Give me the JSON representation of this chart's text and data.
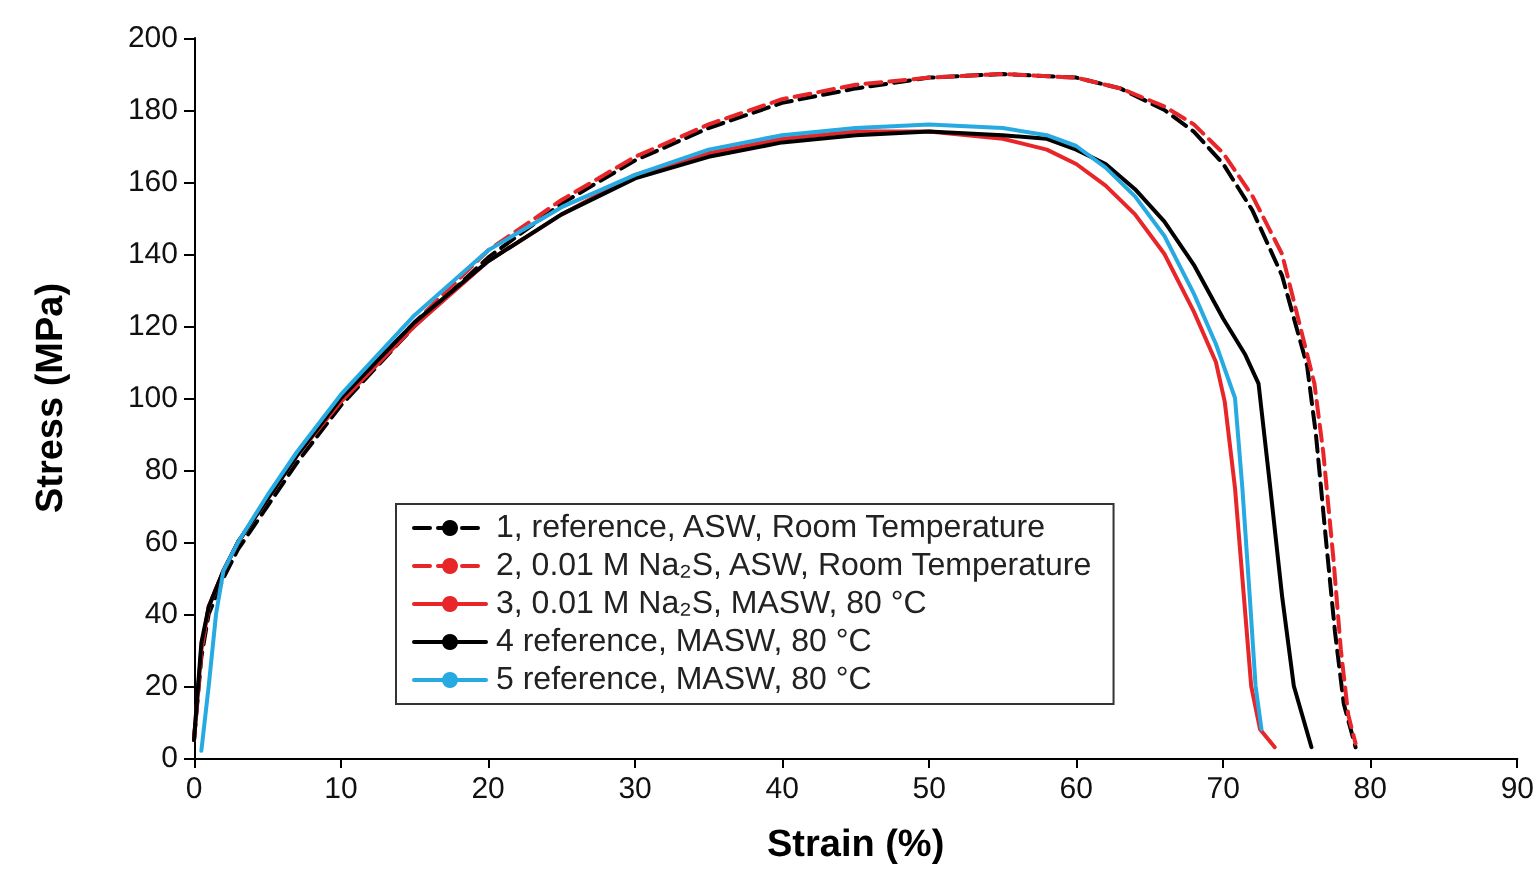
{
  "chart_data": {
    "type": "line",
    "xlabel": "Strain (%)",
    "ylabel": "Stress (MPa)",
    "xlim": [
      0,
      90
    ],
    "xticks": [
      0,
      10,
      20,
      30,
      40,
      50,
      60,
      70,
      80,
      90
    ],
    "ylim": [
      0,
      200
    ],
    "yticks": [
      0,
      20,
      40,
      60,
      80,
      100,
      120,
      140,
      160,
      180,
      200
    ],
    "grid": false,
    "legend": "bottom",
    "marker": "none",
    "series": [
      {
        "name": "1, reference, ASW, Room Temperature",
        "color": "#000000",
        "line_style": "dashed",
        "x": [
          0,
          0.5,
          1,
          2,
          3,
          5,
          7,
          10,
          15,
          20,
          25,
          30,
          35,
          40,
          45,
          50,
          55,
          60,
          63,
          66,
          68,
          70,
          72,
          74,
          75.7,
          76.3,
          77,
          77.6,
          78.2,
          79
        ],
        "values": [
          5,
          28,
          40,
          50,
          58,
          70,
          82,
          98,
          120,
          139,
          154,
          166,
          175,
          182,
          186,
          189,
          190,
          189,
          186,
          180,
          174,
          165,
          152,
          134,
          109,
          90,
          60,
          35,
          15,
          3
        ]
      },
      {
        "name": "2, 0.01 M Na₂S, ASW, Room Temperature",
        "color": "#e8262a",
        "line_style": "dashed",
        "x": [
          0,
          0.5,
          1,
          2,
          3,
          5,
          7,
          10,
          15,
          20,
          25,
          30,
          35,
          40,
          45,
          50,
          55,
          60,
          63,
          66,
          68,
          70,
          72,
          74,
          76.2,
          76.8,
          77.5,
          78,
          78.5,
          79
        ],
        "values": [
          5,
          30,
          42,
          52,
          60,
          72,
          84,
          100,
          121,
          141,
          155,
          167,
          176,
          183,
          187,
          189,
          190,
          189,
          186,
          181,
          176,
          168,
          156,
          140,
          104,
          85,
          55,
          30,
          12,
          4
        ]
      },
      {
        "name": "3, 0.01 M Na₂S, MASW, 80 °C",
        "color": "#e8262a",
        "line_style": "solid",
        "x": [
          0,
          0.5,
          1,
          2,
          3,
          5,
          7,
          10,
          15,
          20,
          25,
          30,
          35,
          40,
          45,
          50,
          55,
          58,
          60,
          62,
          64,
          66,
          68,
          69.5,
          70.1,
          70.8,
          71.4,
          71.9,
          72.5,
          73.5
        ],
        "values": [
          5,
          30,
          42,
          52,
          60,
          72,
          84,
          99,
          120,
          138,
          151,
          162,
          168,
          172,
          174,
          174,
          172,
          169,
          165,
          159,
          151,
          140,
          124,
          110,
          99,
          75,
          45,
          20,
          8,
          3
        ]
      },
      {
        "name": "4 reference, MASW, 80 °C",
        "color": "#000000",
        "line_style": "solid",
        "x": [
          0,
          0.5,
          1,
          2,
          3,
          5,
          7,
          10,
          15,
          20,
          25,
          30,
          35,
          40,
          45,
          50,
          55,
          58,
          60,
          62,
          64,
          66,
          68,
          70,
          71.5,
          72.4,
          73.2,
          74,
          74.8,
          76
        ],
        "values": [
          5,
          32,
          42,
          52,
          60,
          72,
          84,
          100,
          121,
          138,
          151,
          161,
          167,
          171,
          173,
          174,
          173,
          172,
          169,
          165,
          158,
          149,
          137,
          122,
          112,
          104,
          75,
          45,
          20,
          3
        ]
      },
      {
        "name": "5 reference, MASW, 80 °C",
        "color": "#27aae1",
        "line_style": "solid",
        "x": [
          0.5,
          1,
          1.5,
          2,
          3,
          5,
          7,
          10,
          15,
          20,
          25,
          30,
          35,
          40,
          45,
          50,
          55,
          58,
          60,
          62,
          64,
          66,
          68,
          69.5,
          70.8,
          71.3,
          71.8,
          72.2,
          72.6
        ],
        "values": [
          2,
          20,
          40,
          52,
          60,
          73,
          85,
          101,
          123,
          141,
          153,
          162,
          169,
          173,
          175,
          176,
          175,
          173,
          170,
          164,
          156,
          145,
          129,
          115,
          100,
          75,
          45,
          20,
          8
        ]
      }
    ]
  }
}
